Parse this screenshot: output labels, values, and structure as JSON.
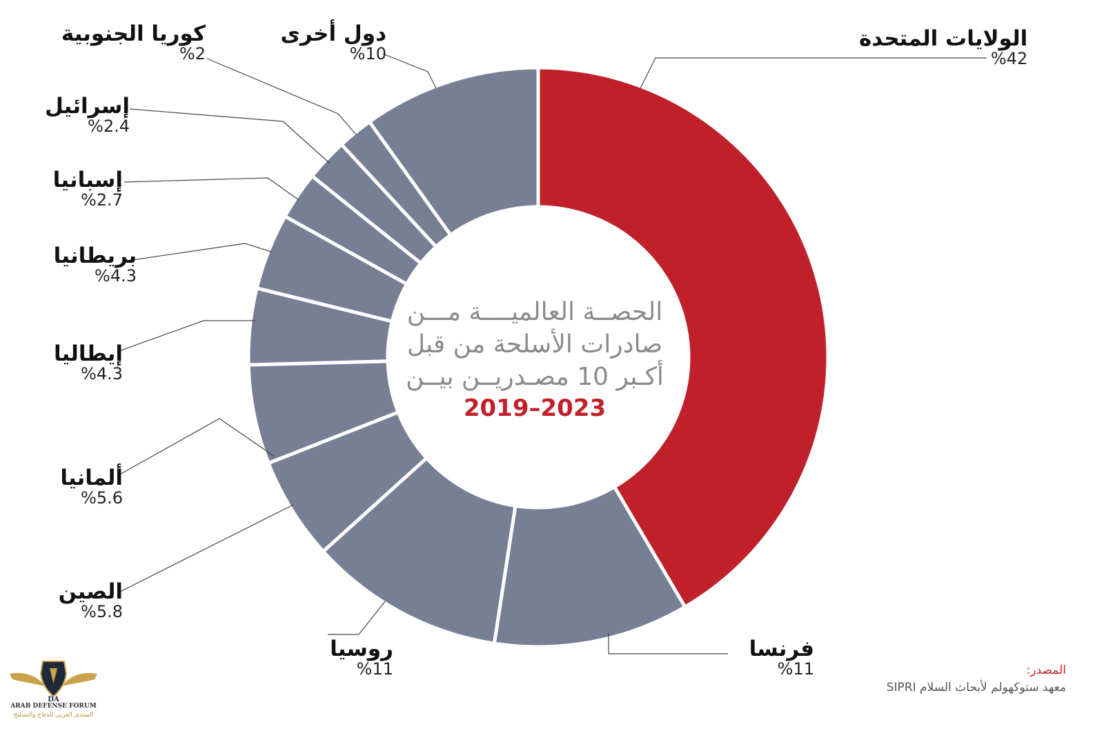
{
  "title": {
    "line1": "الحصــة العالميــــة مـــن",
    "line2": "صادرات الأسلحة من قبل",
    "line3": "أكـبر 10 مصـدريــن بيــن",
    "years": "2023–2019"
  },
  "source": {
    "label": "المصدر:",
    "text": "معهد ستوكهولم لأبحاث السلام SIPRI"
  },
  "logo": {
    "mark": "DA",
    "en": "ARAB DEFENSE FORUM",
    "ar": "المنتدى العربي للدفاع والتسليح"
  },
  "colors": {
    "highlight": "#c0202a",
    "others": "#767f94",
    "separator": "#ffffff",
    "leader": "#444444"
  },
  "chart_data": {
    "type": "pie",
    "variant": "donut",
    "title": "الحصة العالمية من صادرات الأسلحة من قبل أكبر 10 مصدرين بين 2023–2019",
    "unit": "%",
    "slices": [
      {
        "name": "الولايات المتحدة",
        "value": 42,
        "pct_label": "%42",
        "highlight": true
      },
      {
        "name": "فرنسا",
        "value": 11,
        "pct_label": "%11",
        "highlight": false
      },
      {
        "name": "روسيا",
        "value": 11,
        "pct_label": "%11",
        "highlight": false
      },
      {
        "name": "الصين",
        "value": 5.8,
        "pct_label": "%5.8",
        "highlight": false
      },
      {
        "name": "ألمانيا",
        "value": 5.6,
        "pct_label": "%5.6",
        "highlight": false
      },
      {
        "name": "إيطاليا",
        "value": 4.3,
        "pct_label": "%4.3",
        "highlight": false
      },
      {
        "name": "بريطانيا",
        "value": 4.3,
        "pct_label": "%4.3",
        "highlight": false
      },
      {
        "name": "إسبانيا",
        "value": 2.7,
        "pct_label": "%2.7",
        "highlight": false
      },
      {
        "name": "إسرائيل",
        "value": 2.4,
        "pct_label": "%2.4",
        "highlight": false
      },
      {
        "name": "كوريا الجنوبية",
        "value": 2,
        "pct_label": "%2",
        "highlight": false
      },
      {
        "name": "دول أخرى",
        "value": 10,
        "pct_label": "%10",
        "highlight": false
      }
    ]
  }
}
